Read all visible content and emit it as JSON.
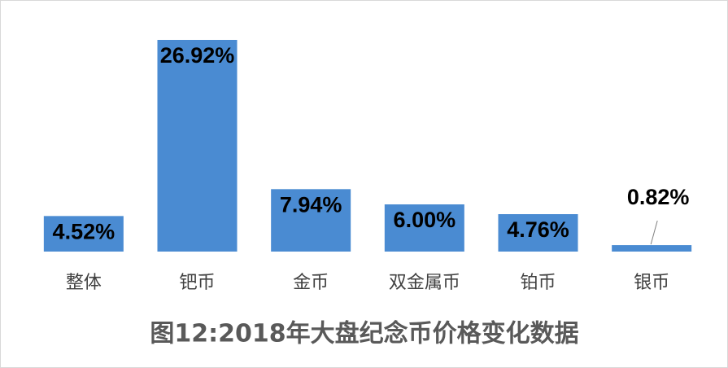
{
  "chart_data": {
    "type": "bar",
    "title": "图12:2018年大盘纪念币价格变化数据",
    "categories": [
      "整体",
      "钯币",
      "金币",
      "双金属币",
      "铂币",
      "银币"
    ],
    "values": [
      4.52,
      26.92,
      7.94,
      6.0,
      4.76,
      0.82
    ],
    "value_labels": [
      "4.52%",
      "26.92%",
      "7.94%",
      "6.00%",
      "4.76%",
      "0.82%"
    ],
    "color": "#4a8bd2"
  }
}
